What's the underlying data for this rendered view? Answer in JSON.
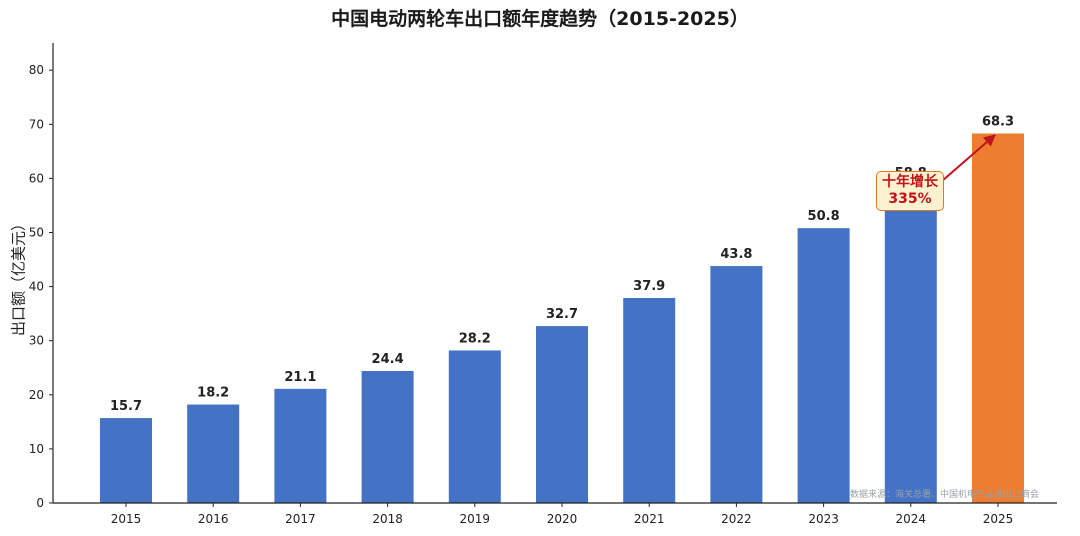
{
  "chart_data": {
    "type": "bar",
    "title": "中国电动两轮车出口额年度趋势（2015-2025）",
    "ylabel": "出口额（亿美元）",
    "xlabel": "",
    "categories": [
      "2015",
      "2016",
      "2017",
      "2018",
      "2019",
      "2020",
      "2021",
      "2022",
      "2023",
      "2024",
      "2025"
    ],
    "values": [
      15.7,
      18.2,
      21.1,
      24.4,
      28.2,
      32.7,
      37.9,
      43.8,
      50.8,
      58.8,
      68.3
    ],
    "value_labels": [
      "15.7",
      "18.2",
      "21.1",
      "24.4",
      "28.2",
      "32.7",
      "37.9",
      "43.8",
      "50.8",
      "58.8",
      "68.3"
    ],
    "ylim": [
      0,
      85
    ],
    "yticks": [
      "0",
      "10",
      "20",
      "30",
      "40",
      "50",
      "60",
      "70",
      "80"
    ],
    "grid": false,
    "colors": {
      "bar": "#4472c4",
      "highlight": "#ed7d31",
      "arrow": "#c0141a"
    },
    "highlight_index": 10,
    "annotation": {
      "line1": "十年增长",
      "line2": "335%"
    },
    "source": "数据来源：海关总署、中国机电产品进出口商会"
  }
}
